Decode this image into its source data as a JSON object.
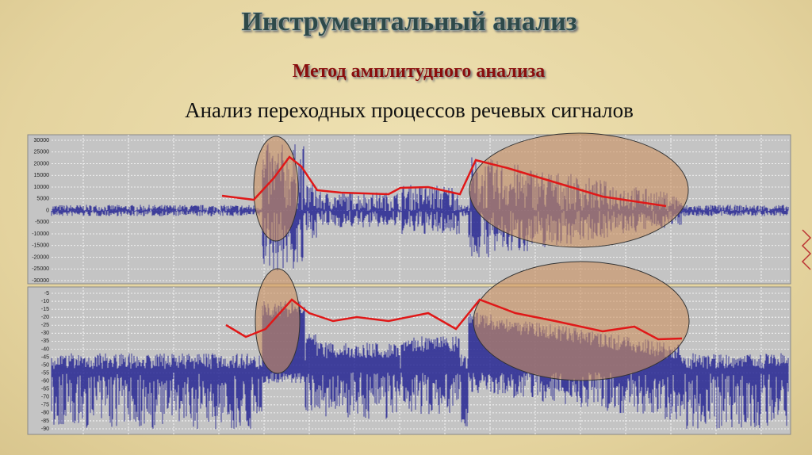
{
  "title": "Инструментальный анализ",
  "subtitle": "Метод амплитудного анализа",
  "heading": "Анализ переходных процессов речевых сигналов",
  "panels": [
    {
      "yticks": [
        30000,
        25000,
        20000,
        15000,
        10000,
        5000,
        0,
        -5000,
        -10000,
        -15000,
        -20000,
        -25000,
        -30000
      ]
    },
    {
      "yticks": [
        -5,
        -10,
        -15,
        -20,
        -25,
        -30,
        -35,
        -40,
        -45,
        -50,
        -55,
        -60,
        -65,
        -70,
        -75,
        -80,
        -85,
        -90
      ]
    }
  ]
}
